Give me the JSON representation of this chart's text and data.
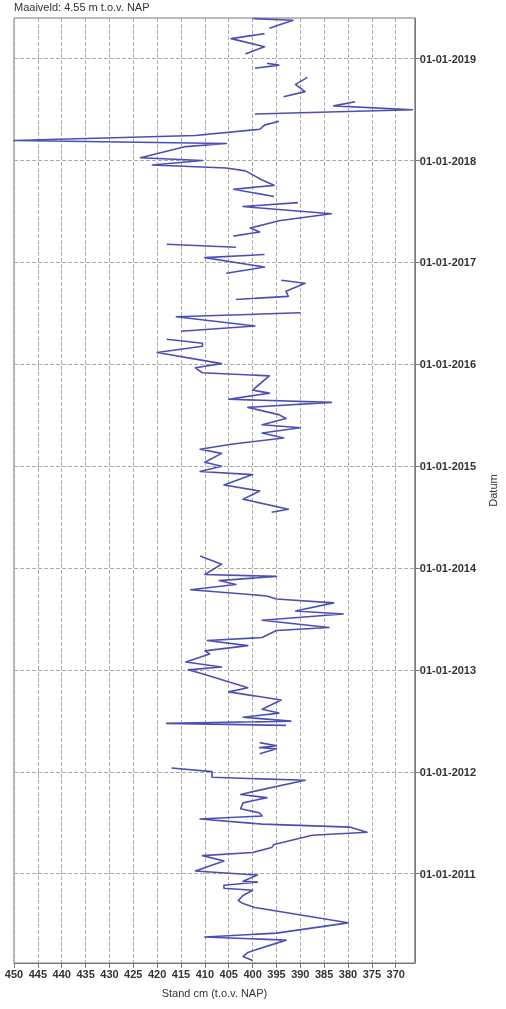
{
  "chart_data": {
    "type": "line",
    "orientation": "horizontal",
    "xlabel": "Stand cm (t.o.v. NAP)",
    "ylabel": "Datum",
    "annotations": [
      "Maaiveld: 4.55 m t.o.v. NAP"
    ],
    "grid": true,
    "line_style": "solid",
    "xlim": [
      450,
      366
    ],
    "ylim": [
      "2010-02-15",
      "2019-05-27"
    ],
    "yticks": [
      {
        "value": "2011-01-01",
        "label": "01-01-2011"
      },
      {
        "value": "2012-01-01",
        "label": "01-01-2012"
      },
      {
        "value": "2013-01-01",
        "label": "01-01-2013"
      },
      {
        "value": "2014-01-01",
        "label": "01-01-2014"
      },
      {
        "value": "2015-01-01",
        "label": "01-01-2015"
      },
      {
        "value": "2016-01-01",
        "label": "01-01-2016"
      },
      {
        "value": "2017-01-01",
        "label": "01-01-2017"
      },
      {
        "value": "2018-01-01",
        "label": "01-01-2018"
      },
      {
        "value": "2019-01-01",
        "label": "01-01-2019"
      }
    ],
    "xticks": [
      450,
      445,
      440,
      435,
      430,
      425,
      420,
      415,
      410,
      405,
      400,
      395,
      390,
      385,
      380,
      375,
      370
    ],
    "series": [
      {
        "color": "#4b4fb5",
        "x": [
          "2010-02-24",
          "2010-03-10",
          "2010-03-25",
          "2010-05-08",
          "2010-05-19",
          "2010-06-02",
          "2010-07-09",
          "2010-09-02",
          "2010-09-16",
          "2010-09-27",
          "2010-10-15",
          "2010-11-03",
          "2010-11-10",
          "2010-11-21",
          "2010-12-02",
          "2010-12-05",
          "2010-12-27",
          "2011-01-11",
          "2011-02-16",
          "2011-03-07",
          "2011-03-18",
          "2011-04-05",
          "2011-04-16",
          "2011-05-19",
          "2011-05-30",
          "2011-06-17",
          "2011-06-28",
          "2011-07-16",
          "2011-07-27",
          "2011-08-07",
          "2011-08-22",
          "2011-09-12",
          "2011-10-01",
          "2011-10-12",
          "2011-10-26",
          "2011-12-02",
          "2011-12-13",
          "2012-01-02",
          "2012-01-15",
          "2012-02-10",
          "2012-03-06",
          "2012-03-24",
          "2012-03-28",
          "2012-04-04",
          "2012-04-15",
          "2012-05-20",
          "2012-06-16",
          "2012-06-23",
          "2012-07-01",
          "2012-07-15",
          "2012-07-30",
          "2012-08-13",
          "2012-09-15",
          "2012-10-14",
          "2012-10-29",
          "2012-12-15",
          "2013-01-01",
          "2013-01-11",
          "2013-01-29",
          "2013-02-27",
          "2013-03-10",
          "2013-03-29",
          "2013-04-16",
          "2013-04-27",
          "2013-05-22",
          "2013-06-02",
          "2013-06-28",
          "2013-07-20",
          "2013-07-31",
          "2013-08-29",
          "2013-09-12",
          "2013-09-23",
          "2013-10-15",
          "2013-11-03",
          "2013-11-17",
          "2013-12-02",
          "2013-12-09",
          "2014-01-15",
          "2014-02-13",
          "2014-05-01",
          "2014-07-20",
          "2014-07-31",
          "2014-09-05",
          "2014-10-04",
          "2014-10-26",
          "2014-12-02",
          "2014-12-13",
          "2015-01-01",
          "2015-01-15",
          "2015-02-16",
          "2015-03-03",
          "2015-03-21",
          "2015-04-12",
          "2015-04-30",
          "2015-05-19",
          "2015-05-30",
          "2015-06-21",
          "2015-07-05",
          "2015-07-31",
          "2015-08-18",
          "2015-08-29",
          "2015-09-20",
          "2015-10-01",
          "2015-11-21",
          "2015-12-02",
          "2015-12-20",
          "2016-01-04",
          "2016-02-13",
          "2016-03-06",
          "2016-03-17",
          "2016-03-31",
          "2016-04-15",
          "2016-04-29",
          "2016-05-18",
          "2016-06-20",
          "2016-07-04",
          "2016-08-01",
          "2016-08-21",
          "2016-09-01",
          "2016-09-19",
          "2016-10-18",
          "2016-10-29",
          "2016-11-10",
          "2016-11-23",
          "2016-12-15",
          "2017-01-18",
          "2017-01-29",
          "2017-02-10",
          "2017-02-24",
          "2017-03-07",
          "2017-03-20",
          "2017-04-05",
          "2017-04-20",
          "2017-05-04",
          "2017-05-30",
          "2017-06-24",
          "2017-07-20",
          "2017-08-03",
          "2017-08-14",
          "2017-08-25",
          "2017-09-20",
          "2017-10-04",
          "2017-10-23",
          "2017-11-25",
          "2017-12-05",
          "2017-12-16",
          "2018-01-01",
          "2018-01-11",
          "2018-02-20",
          "2018-03-03",
          "2018-03-14",
          "2018-04-01",
          "2018-04-23",
          "2018-05-08",
          "2018-05-22",
          "2018-06-05",
          "2018-06-17",
          "2018-07-02",
          "2018-07-16",
          "2018-07-31",
          "2018-08-08",
          "2018-08-18",
          "2018-09-05",
          "2018-10-01",
          "2018-10-26",
          "2018-11-10",
          "2018-11-28",
          "2018-12-09",
          "2018-12-16",
          "2019-01-02",
          "2019-01-18",
          "2019-02-13",
          "2019-03-14",
          "2019-04-01",
          "2019-04-10",
          "2019-04-20",
          "2019-05-19",
          "2019-05-25"
        ],
        "values": [
          400,
          402,
          401,
          393,
          410,
          395,
          380,
          399.5,
          402,
          403,
          402,
          400,
          406,
          406,
          399,
          402,
          399,
          412,
          406,
          410.5,
          400,
          396,
          395.5,
          387.5,
          376,
          379.5,
          398,
          411,
          398,
          398.5,
          402.5,
          402,
          397,
          402.5,
          399,
          389,
          408.5,
          408.5,
          417,
          null,
          398.5,
          395,
          398.5,
          395,
          398.5,
          null,
          393,
          418,
          392,
          402,
          394.5,
          398,
          394,
          405,
          401,
          410,
          413.5,
          406.5,
          414,
          409,
          410,
          401,
          409.5,
          398,
          395,
          384,
          398,
          381,
          391,
          383,
          395,
          397,
          413,
          403.5,
          407,
          395,
          410,
          406.5,
          411,
          null,
          396,
          392.5,
          402,
          398.5,
          406,
          400,
          411,
          406.5,
          410,
          406.5,
          411,
          404.5,
          393.5,
          398,
          390,
          398,
          393,
          394.5,
          401,
          383.5,
          405,
          396.5,
          400,
          396.5,
          410.5,
          412,
          406.5,
          420,
          410.5,
          410.5,
          418,
          null,
          415,
          399.5,
          416,
          390,
          null,
          403.5,
          392.5,
          393,
          389,
          394,
          null,
          405.5,
          397.5,
          410,
          397.5,
          null,
          403.5,
          418,
          null,
          404,
          398.5,
          400.5,
          394.5,
          383.5,
          402,
          390.5,
          null,
          395.5,
          404,
          395.5,
          398,
          401.5,
          405.5,
          421,
          410.5,
          423.5,
          414,
          405.5,
          450,
          412,
          398.5,
          397.5,
          394.5,
          null,
          399.5,
          366.5,
          383,
          378.5,
          null,
          393.5,
          389,
          391,
          388.5,
          null,
          399.5,
          394.5,
          397,
          null,
          401.5,
          397.5,
          404.5,
          397.5,
          null,
          396.5,
          391.5,
          400
        ]
      }
    ]
  }
}
